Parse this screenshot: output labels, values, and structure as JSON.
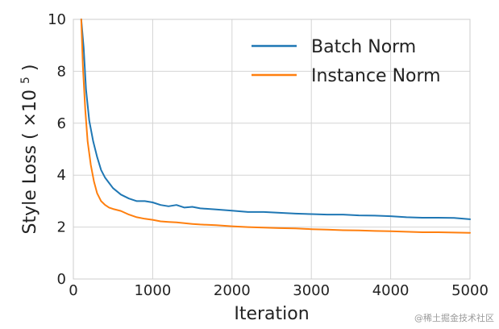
{
  "watermark": "@稀土掘金技术社区",
  "chart_data": {
    "type": "line",
    "title": "",
    "xlabel": "Iteration",
    "ylabel_prefix": "Style Loss (",
    "ylabel_times": "×10",
    "ylabel_exp": "5",
    "ylabel_suffix": ")",
    "xlim": [
      0,
      5000
    ],
    "ylim": [
      0,
      10
    ],
    "xticks": [
      0,
      1000,
      2000,
      3000,
      4000,
      5000
    ],
    "yticks": [
      0,
      2,
      4,
      6,
      8,
      10
    ],
    "grid": true,
    "legend_position": "top-right",
    "series": [
      {
        "name": "Batch Norm",
        "color": "#1f77b4",
        "x": [
          100,
          130,
          160,
          200,
          250,
          300,
          350,
          400,
          450,
          500,
          600,
          700,
          800,
          900,
          1000,
          1100,
          1200,
          1300,
          1400,
          1500,
          1600,
          1800,
          2000,
          2200,
          2400,
          2600,
          2800,
          3000,
          3200,
          3400,
          3600,
          3800,
          4000,
          4200,
          4400,
          4600,
          4800,
          5000
        ],
        "y": [
          10.0,
          8.9,
          7.3,
          6.1,
          5.3,
          4.7,
          4.2,
          3.9,
          3.7,
          3.5,
          3.25,
          3.1,
          3.0,
          3.0,
          2.95,
          2.85,
          2.8,
          2.85,
          2.75,
          2.78,
          2.72,
          2.68,
          2.63,
          2.58,
          2.58,
          2.55,
          2.52,
          2.5,
          2.48,
          2.48,
          2.45,
          2.44,
          2.42,
          2.38,
          2.36,
          2.36,
          2.35,
          2.3
        ]
      },
      {
        "name": "Instance Norm",
        "color": "#ff7f0e",
        "x": [
          100,
          120,
          150,
          180,
          220,
          260,
          300,
          350,
          400,
          450,
          500,
          600,
          700,
          800,
          900,
          1000,
          1100,
          1200,
          1300,
          1400,
          1500,
          1600,
          1800,
          2000,
          2200,
          2400,
          2600,
          2800,
          3000,
          3200,
          3400,
          3600,
          3800,
          4000,
          4200,
          4400,
          4600,
          4800,
          5000
        ],
        "y": [
          10.0,
          8.2,
          6.5,
          5.3,
          4.4,
          3.75,
          3.3,
          3.0,
          2.85,
          2.75,
          2.7,
          2.62,
          2.48,
          2.38,
          2.32,
          2.28,
          2.22,
          2.2,
          2.18,
          2.15,
          2.12,
          2.1,
          2.07,
          2.03,
          2.0,
          1.98,
          1.96,
          1.95,
          1.92,
          1.9,
          1.88,
          1.87,
          1.85,
          1.84,
          1.82,
          1.8,
          1.8,
          1.79,
          1.78
        ]
      }
    ]
  }
}
